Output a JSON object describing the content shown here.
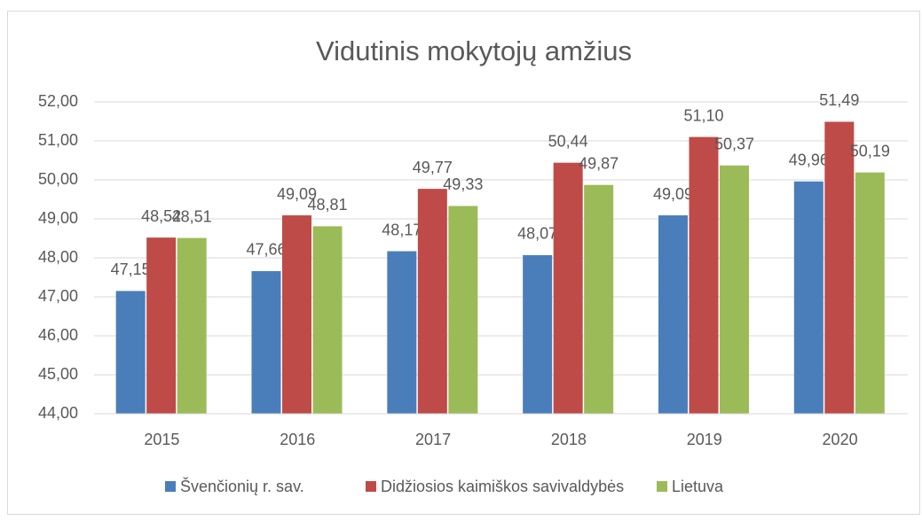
{
  "chart_data": {
    "type": "bar",
    "title": "Vidutinis mokytojų amžius",
    "categories": [
      "2015",
      "2016",
      "2017",
      "2018",
      "2019",
      "2020"
    ],
    "series": [
      {
        "name": "Švenčionių r. sav.",
        "color": "#4a7ebb",
        "values": [
          47.15,
          47.66,
          48.17,
          48.07,
          49.09,
          49.96
        ],
        "value_labels": [
          "47,15",
          "47,66",
          "48,17",
          "48,07",
          "49,09",
          "49,96"
        ]
      },
      {
        "name": "Didžiosios kaimiškos savivaldybės",
        "color": "#be4b48",
        "values": [
          48.52,
          49.09,
          49.77,
          50.44,
          51.1,
          51.49
        ],
        "value_labels": [
          "48,52",
          "49,09",
          "49,77",
          "50,44",
          "51,10",
          "51,49"
        ]
      },
      {
        "name": "Lietuva",
        "color": "#9bbb59",
        "values": [
          48.51,
          48.81,
          49.33,
          49.87,
          50.37,
          50.19
        ],
        "value_labels": [
          "48,51",
          "48,81",
          "49,33",
          "49,87",
          "50,37",
          "50,19"
        ]
      }
    ],
    "ylim": [
      44,
      52
    ],
    "yticks": [
      {
        "value": 44,
        "label": "44,00"
      },
      {
        "value": 45,
        "label": "45,00"
      },
      {
        "value": 46,
        "label": "46,00"
      },
      {
        "value": 47,
        "label": "47,00"
      },
      {
        "value": 48,
        "label": "48,00"
      },
      {
        "value": 49,
        "label": "49,00"
      },
      {
        "value": 50,
        "label": "50,00"
      },
      {
        "value": 51,
        "label": "51,00"
      },
      {
        "value": 52,
        "label": "52,00"
      }
    ],
    "grid": true,
    "legend": "bottom"
  }
}
